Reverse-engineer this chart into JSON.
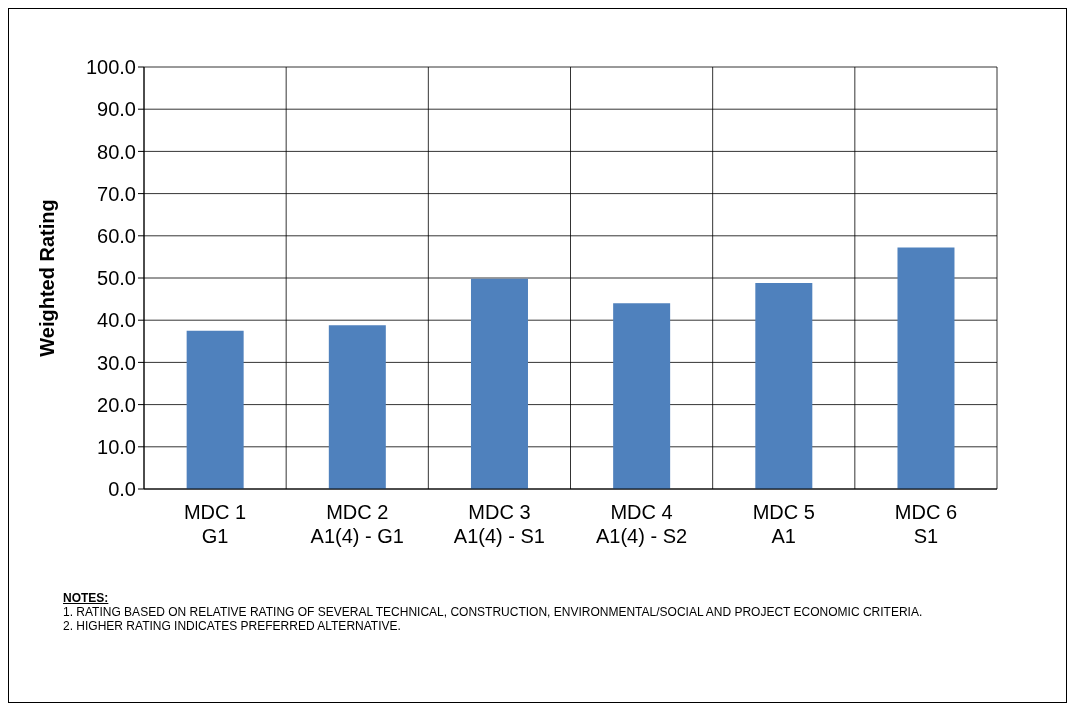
{
  "chart_data": {
    "type": "bar",
    "ylabel": "Weighted Rating",
    "categories": [
      "MDC 1\nG1",
      "MDC 2\nA1(4) - G1",
      "MDC 3\nA1(4) - S1",
      "MDC 4\nA1(4) - S2",
      "MDC 5\nA1",
      "MDC 6\nS1"
    ],
    "values": [
      37.5,
      38.8,
      49.8,
      44.0,
      48.8,
      57.2
    ],
    "color": "#4f81bd",
    "ylim": [
      0,
      100
    ],
    "yticks": [
      {
        "value": 0,
        "label": "0.0"
      },
      {
        "value": 10,
        "label": "10.0"
      },
      {
        "value": 20,
        "label": "20.0"
      },
      {
        "value": 30,
        "label": "30.0"
      },
      {
        "value": 40,
        "label": "40.0"
      },
      {
        "value": 50,
        "label": "50.0"
      },
      {
        "value": 60,
        "label": "60.0"
      },
      {
        "value": 70,
        "label": "70.0"
      },
      {
        "value": 80,
        "label": "80.0"
      },
      {
        "value": 90,
        "label": "90.0"
      },
      {
        "value": 100,
        "label": "100.0"
      }
    ],
    "grid": true,
    "annotations": [
      "NOTES:",
      "1. RATING BASED ON RELATIVE RATING OF SEVERAL TECHNICAL, CONSTRUCTION,  ENVIRONMENTAL/SOCIAL AND PROJECT ECONOMIC CRITERIA.",
      "2. HIGHER RATING INDICATES PREFERRED ALTERNATIVE."
    ]
  }
}
